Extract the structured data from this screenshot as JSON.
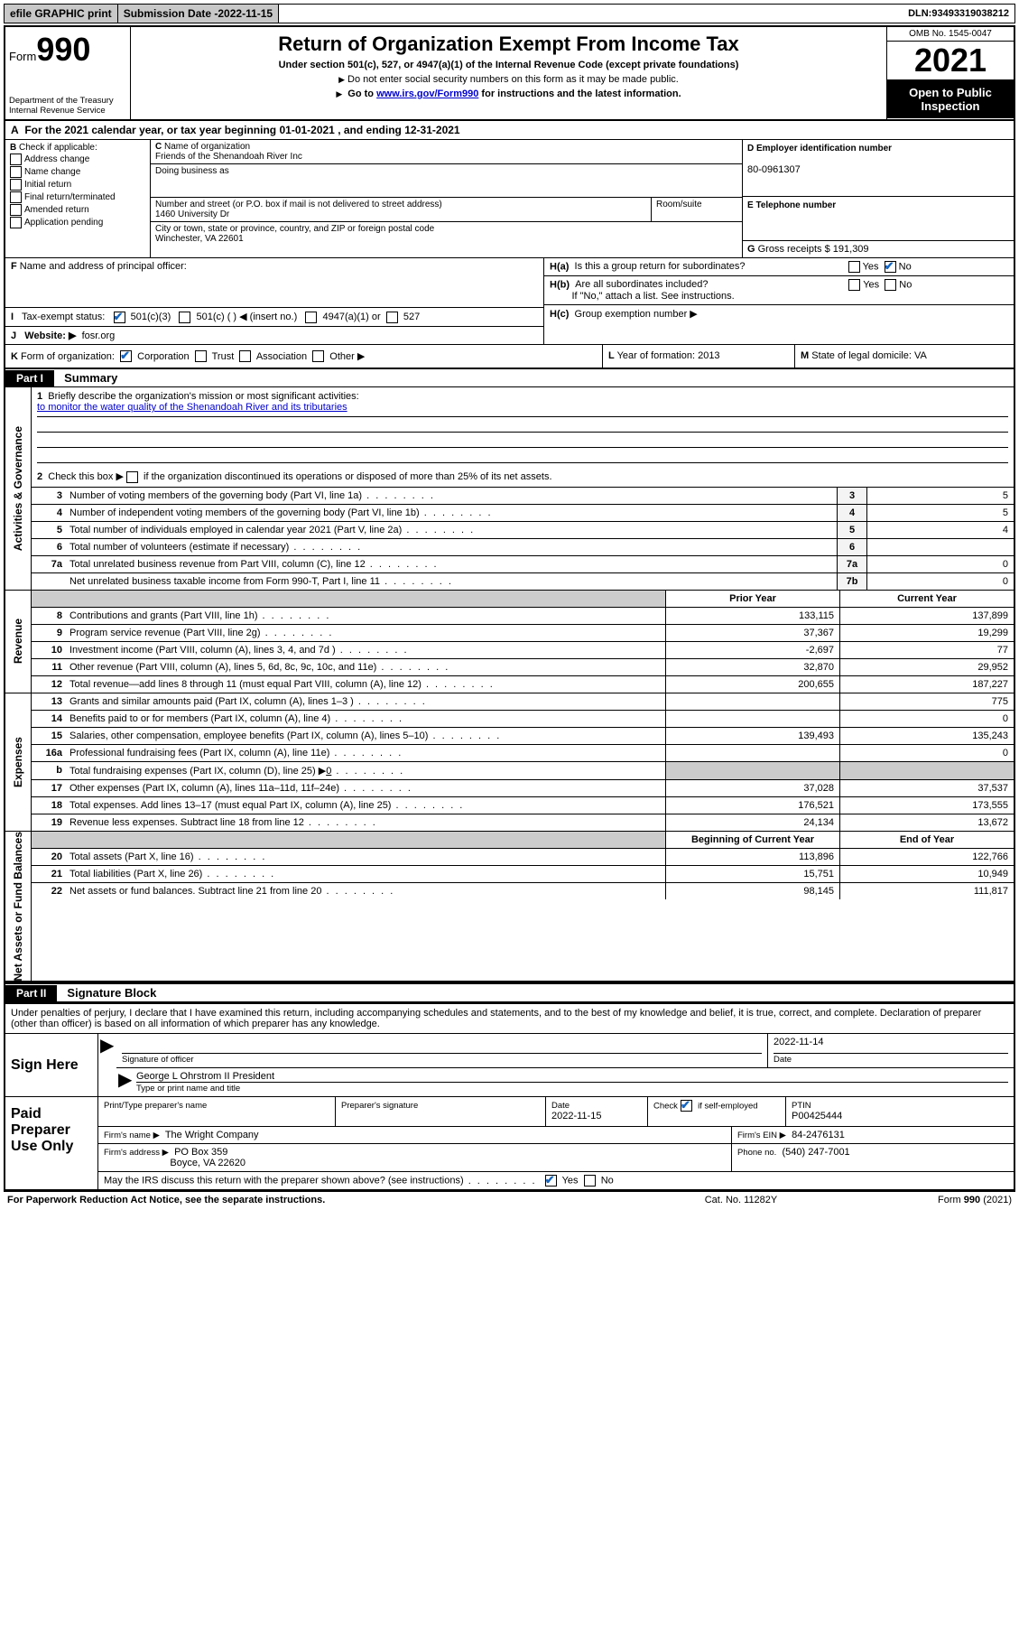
{
  "topbar": {
    "efile": "efile GRAPHIC print",
    "subdate_label": "Submission Date - ",
    "subdate": "2022-11-15",
    "dln_label": "DLN: ",
    "dln": "93493319038212"
  },
  "header": {
    "form_prefix": "Form",
    "form_no": "990",
    "dept": "Department of the Treasury",
    "irs": "Internal Revenue Service",
    "title": "Return of Organization Exempt From Income Tax",
    "sub": "Under section 501(c), 527, or 4947(a)(1) of the Internal Revenue Code (except private foundations)",
    "note1": "Do not enter social security numbers on this form as it may be made public.",
    "note2_pre": "Go to ",
    "note2_link": "www.irs.gov/Form990",
    "note2_post": " for instructions and the latest information.",
    "omb": "OMB No. 1545-0047",
    "year": "2021",
    "inspect": "Open to Public Inspection"
  },
  "A": {
    "text_pre": "For the 2021 calendar year, or tax year beginning ",
    "begin": "01-01-2021",
    "mid": " , and ending ",
    "end": "12-31-2021"
  },
  "B": {
    "label": "Check if applicable:",
    "opts": [
      "Address change",
      "Name change",
      "Initial return",
      "Final return/terminated",
      "Amended return",
      "Application pending"
    ]
  },
  "C": {
    "name_label": "Name of organization",
    "name": "Friends of the Shenandoah River Inc",
    "dba_label": "Doing business as",
    "dba": "",
    "street_label": "Number and street (or P.O. box if mail is not delivered to street address)",
    "street": "1460 University Dr",
    "room_label": "Room/suite",
    "city_label": "City or town, state or province, country, and ZIP or foreign postal code",
    "city": "Winchester, VA  22601"
  },
  "D": {
    "label": "Employer identification number",
    "val": "80-0961307"
  },
  "E": {
    "label": "Telephone number",
    "val": ""
  },
  "G": {
    "label": "Gross receipts $",
    "val": "191,309"
  },
  "F": {
    "label": "Name and address of principal officer:"
  },
  "H": {
    "a": "Is this a group return for subordinates?",
    "b": "Are all subordinates included?",
    "b_note": "If \"No,\" attach a list. See instructions.",
    "c": "Group exemption number ▶",
    "yes": "Yes",
    "no": "No"
  },
  "I": {
    "label": "Tax-exempt status:",
    "o1": "501(c)(3)",
    "o2": "501(c) (   ) ◀ (insert no.)",
    "o3": "4947(a)(1) or",
    "o4": "527"
  },
  "J": {
    "label": "Website: ▶",
    "val": "fosr.org"
  },
  "K": {
    "label": "Form of organization:",
    "o1": "Corporation",
    "o2": "Trust",
    "o3": "Association",
    "o4": "Other ▶"
  },
  "L": {
    "label": "Year of formation:",
    "val": "2013"
  },
  "M": {
    "label": "State of legal domicile:",
    "val": "VA"
  },
  "part1": {
    "hdr": "Part I",
    "title": "Summary",
    "q1": "Briefly describe the organization's mission or most significant activities:",
    "mission": "to monitor the water quality of the Shenandoah River and its tributaries",
    "q2": "Check this box ▶        if the organization discontinued its operations or disposed of more than 25% of its net assets.",
    "lines_gov": [
      {
        "n": "3",
        "t": "Number of voting members of the governing body (Part VI, line 1a)",
        "box": "3",
        "v": "5"
      },
      {
        "n": "4",
        "t": "Number of independent voting members of the governing body (Part VI, line 1b)",
        "box": "4",
        "v": "5"
      },
      {
        "n": "5",
        "t": "Total number of individuals employed in calendar year 2021 (Part V, line 2a)",
        "box": "5",
        "v": "4"
      },
      {
        "n": "6",
        "t": "Total number of volunteers (estimate if necessary)",
        "box": "6",
        "v": ""
      },
      {
        "n": "7a",
        "t": "Total unrelated business revenue from Part VIII, column (C), line 12",
        "box": "7a",
        "v": "0"
      },
      {
        "n": "",
        "t": "Net unrelated business taxable income from Form 990-T, Part I, line 11",
        "box": "7b",
        "v": "0"
      }
    ],
    "col_prior": "Prior Year",
    "col_curr": "Current Year",
    "revenue": [
      {
        "n": "8",
        "t": "Contributions and grants (Part VIII, line 1h)",
        "p": "133,115",
        "c": "137,899"
      },
      {
        "n": "9",
        "t": "Program service revenue (Part VIII, line 2g)",
        "p": "37,367",
        "c": "19,299"
      },
      {
        "n": "10",
        "t": "Investment income (Part VIII, column (A), lines 3, 4, and 7d )",
        "p": "-2,697",
        "c": "77"
      },
      {
        "n": "11",
        "t": "Other revenue (Part VIII, column (A), lines 5, 6d, 8c, 9c, 10c, and 11e)",
        "p": "32,870",
        "c": "29,952"
      },
      {
        "n": "12",
        "t": "Total revenue—add lines 8 through 11 (must equal Part VIII, column (A), line 12)",
        "p": "200,655",
        "c": "187,227"
      }
    ],
    "expenses": [
      {
        "n": "13",
        "t": "Grants and similar amounts paid (Part IX, column (A), lines 1–3 )",
        "p": "",
        "c": "775"
      },
      {
        "n": "14",
        "t": "Benefits paid to or for members (Part IX, column (A), line 4)",
        "p": "",
        "c": "0"
      },
      {
        "n": "15",
        "t": "Salaries, other compensation, employee benefits (Part IX, column (A), lines 5–10)",
        "p": "139,493",
        "c": "135,243"
      },
      {
        "n": "16a",
        "t": "Professional fundraising fees (Part IX, column (A), line 11e)",
        "p": "",
        "c": "0"
      },
      {
        "n": "b",
        "t": "Total fundraising expenses (Part IX, column (D), line 25) ▶",
        "p": "__shade__",
        "c": "__shade__",
        "extra": "0"
      },
      {
        "n": "17",
        "t": "Other expenses (Part IX, column (A), lines 11a–11d, 11f–24e)",
        "p": "37,028",
        "c": "37,537"
      },
      {
        "n": "18",
        "t": "Total expenses. Add lines 13–17 (must equal Part IX, column (A), line 25)",
        "p": "176,521",
        "c": "173,555"
      },
      {
        "n": "19",
        "t": "Revenue less expenses. Subtract line 18 from line 12",
        "p": "24,134",
        "c": "13,672"
      }
    ],
    "col_beg": "Beginning of Current Year",
    "col_end": "End of Year",
    "netassets": [
      {
        "n": "20",
        "t": "Total assets (Part X, line 16)",
        "p": "113,896",
        "c": "122,766"
      },
      {
        "n": "21",
        "t": "Total liabilities (Part X, line 26)",
        "p": "15,751",
        "c": "10,949"
      },
      {
        "n": "22",
        "t": "Net assets or fund balances. Subtract line 21 from line 20",
        "p": "98,145",
        "c": "111,817"
      }
    ],
    "vtab_gov": "Activities & Governance",
    "vtab_rev": "Revenue",
    "vtab_exp": "Expenses",
    "vtab_net": "Net Assets or Fund Balances"
  },
  "part2": {
    "hdr": "Part II",
    "title": "Signature Block",
    "intro": "Under penalties of perjury, I declare that I have examined this return, including accompanying schedules and statements, and to the best of my knowledge and belief, it is true, correct, and complete. Declaration of preparer (other than officer) is based on all information of which preparer has any knowledge.",
    "sign_here": "Sign Here",
    "sig_officer": "Signature of officer",
    "date_label": "Date",
    "date": "2022-11-14",
    "officer": "George L Ohrstrom II President",
    "type_name": "Type or print name and title",
    "paid": "Paid Preparer Use Only",
    "prep_name_lbl": "Print/Type preparer's name",
    "prep_sig_lbl": "Preparer's signature",
    "prep_date_lbl": "Date",
    "prep_date": "2022-11-15",
    "check_lbl": "Check",
    "self_emp": "if self-employed",
    "ptin_lbl": "PTIN",
    "ptin": "P00425444",
    "firm_name_lbl": "Firm's name   ▶",
    "firm_name": "The Wright Company",
    "firm_ein_lbl": "Firm's EIN ▶",
    "firm_ein": "84-2476131",
    "firm_addr_lbl": "Firm's address ▶",
    "firm_addr1": "PO Box 359",
    "firm_addr2": "Boyce, VA  22620",
    "phone_lbl": "Phone no.",
    "phone": "(540) 247-7001",
    "discuss": "May the IRS discuss this return with the preparer shown above? (see instructions)"
  },
  "footer": {
    "pra": "For Paperwork Reduction Act Notice, see the separate instructions.",
    "cat": "Cat. No. 11282Y",
    "form": "Form 990 (2021)"
  },
  "colors": {
    "link": "#0000cc",
    "check": "#1565c0",
    "shade": "#cccccc",
    "btn": "#c8c8c8"
  }
}
